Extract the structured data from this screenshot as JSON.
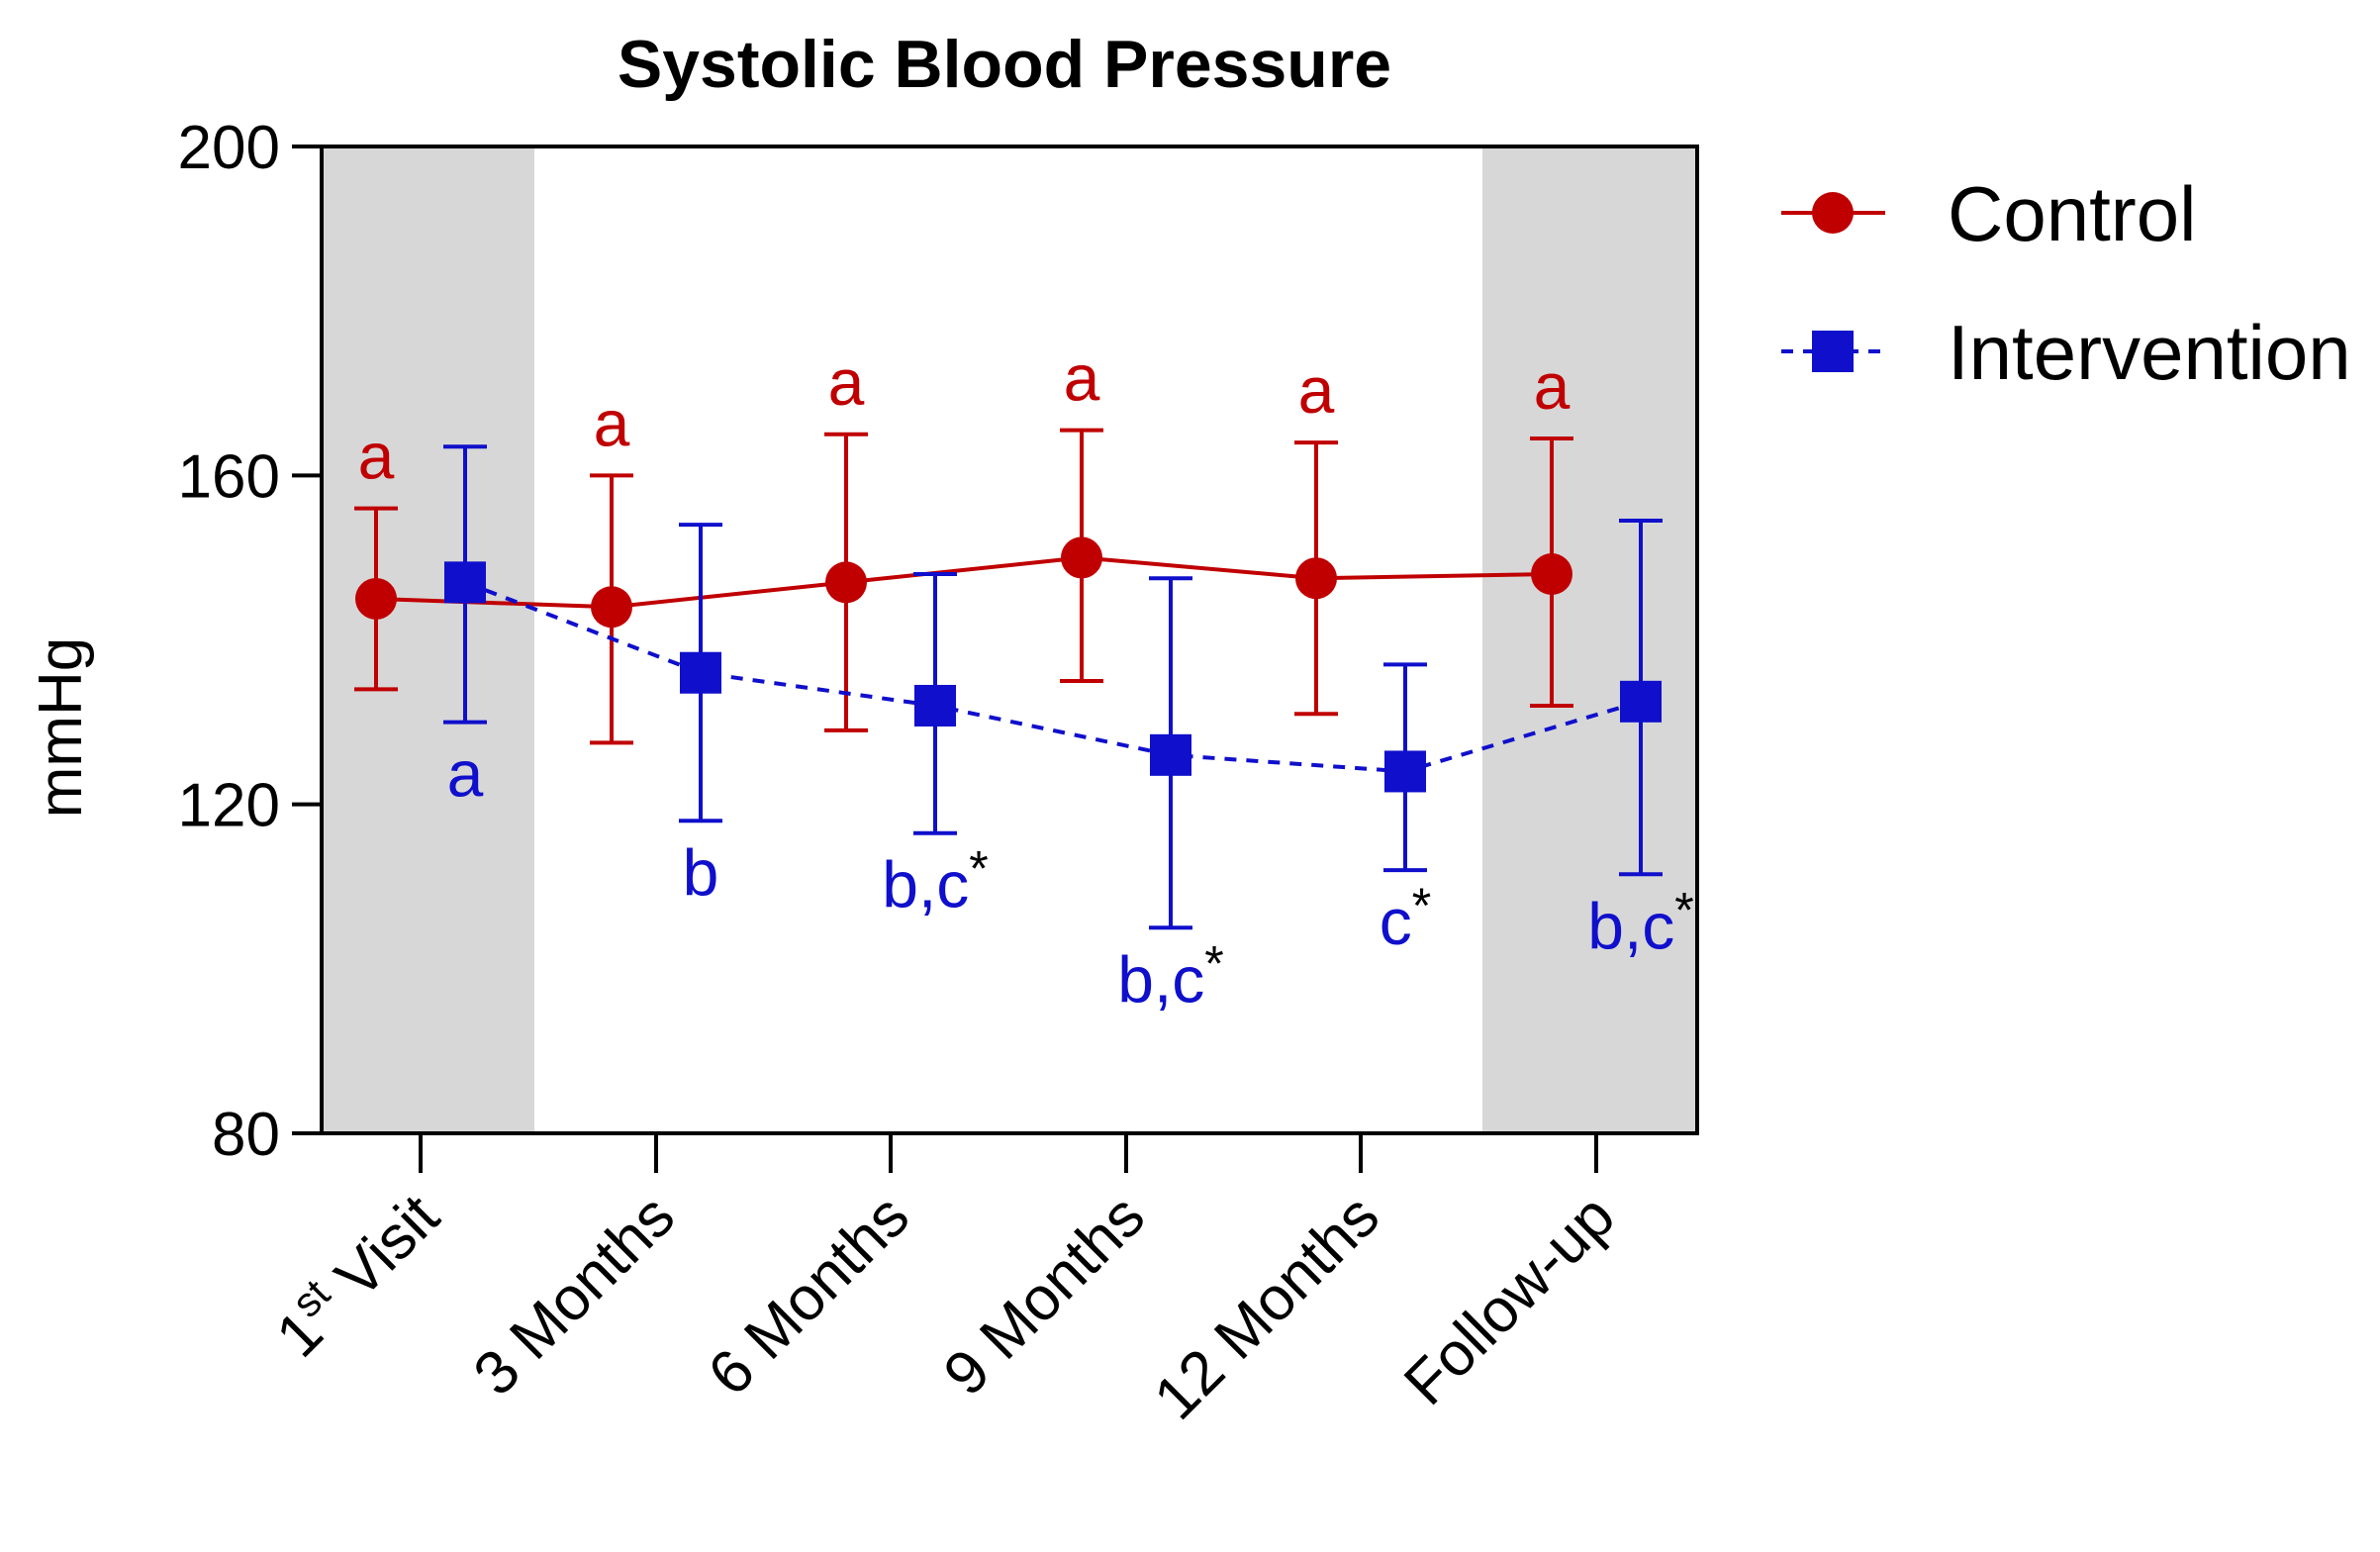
{
  "chart_data": {
    "type": "line",
    "title": "Systolic Blood Pressure",
    "xlabel": "",
    "ylabel": "mmHg",
    "ylim": [
      80,
      200
    ],
    "yticks": [
      80,
      120,
      160,
      200
    ],
    "categories": [
      {
        "base": "1",
        "sup": "st",
        "rest": " Visit"
      },
      {
        "base": "3 Months",
        "sup": "",
        "rest": ""
      },
      {
        "base": "6 Months",
        "sup": "",
        "rest": ""
      },
      {
        "base": "9 Months",
        "sup": "",
        "rest": ""
      },
      {
        "base": "12 Months",
        "sup": "",
        "rest": ""
      },
      {
        "base": "Follow-up",
        "sup": "",
        "rest": ""
      }
    ],
    "shaded_categories": [
      0,
      5
    ],
    "grid": false,
    "legend_position": "right",
    "series": [
      {
        "name": "Control",
        "color": "#c00000",
        "marker": "circle",
        "line_style": "solid",
        "values": [
          145,
          144,
          147,
          150,
          147.5,
          148
        ],
        "error_low": [
          134,
          127.5,
          129,
          135,
          131,
          132
        ],
        "error_high": [
          156,
          160,
          165,
          165.5,
          164,
          164.5
        ],
        "annotations": [
          "a",
          "a",
          "a",
          "a",
          "a",
          "a"
        ]
      },
      {
        "name": "Intervention",
        "color": "#0f0fcc",
        "marker": "square",
        "line_style": "dashed",
        "values": [
          147,
          136,
          132,
          126,
          124,
          132.5
        ],
        "error_low": [
          130,
          118,
          116.5,
          105,
          112,
          111.5
        ],
        "error_high": [
          163.5,
          154,
          148,
          147.5,
          137,
          154.5
        ],
        "annotations": [
          "a",
          "b",
          "b,c*",
          "b,c*",
          "c*",
          "b,c*"
        ]
      }
    ]
  }
}
